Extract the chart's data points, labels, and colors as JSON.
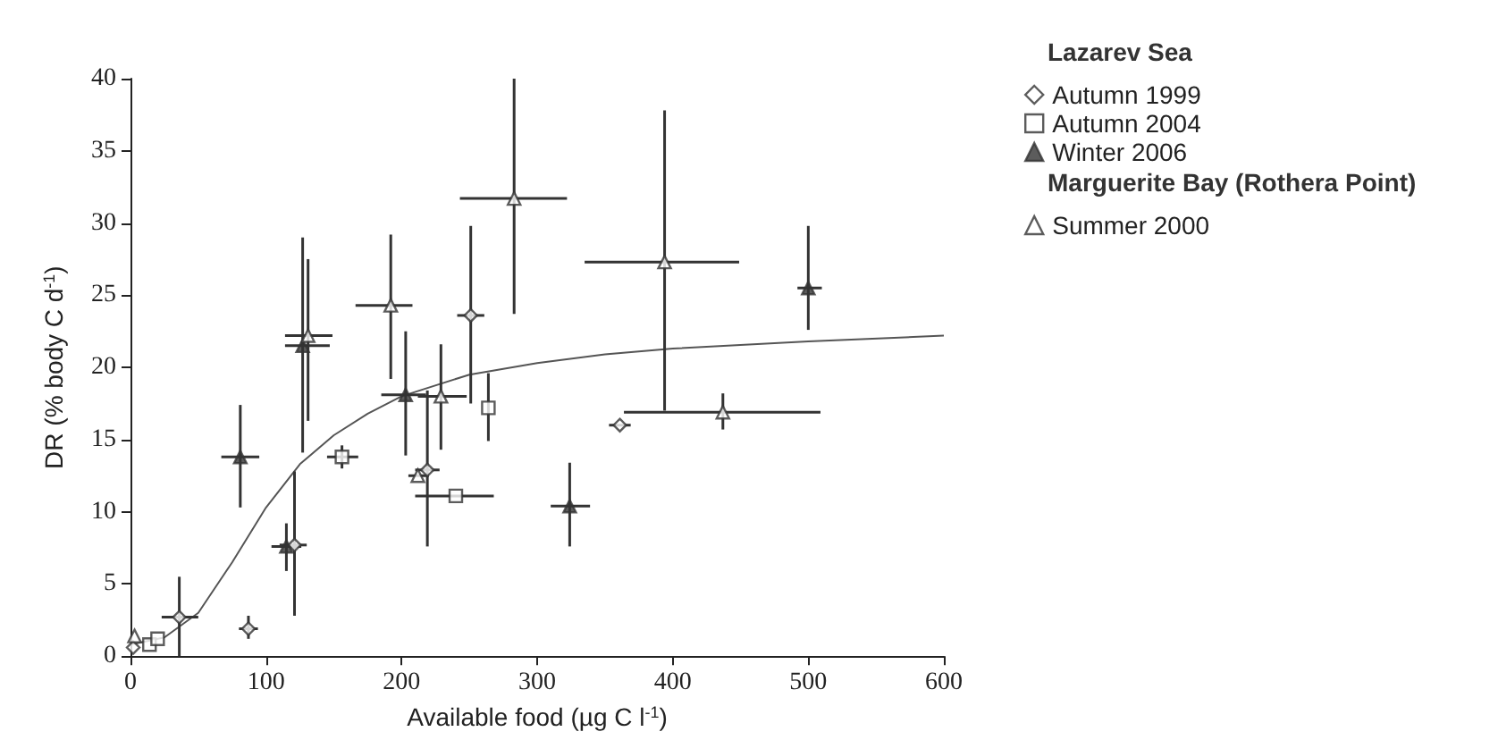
{
  "chart_data": {
    "type": "scatter",
    "xlabel": "Available food (µg C l$^{-1}$)",
    "ylabel": "DR (% body C d$^{-1}$)",
    "annotations": [
      "Lazarev Sea",
      "Marguerite Bay (Rothera Point)"
    ],
    "xlim": [
      0,
      600
    ],
    "xticks": [
      0,
      100,
      200,
      300,
      400,
      500,
      600
    ],
    "ylim": [
      0,
      40
    ],
    "yticks": [
      0,
      5,
      10,
      15,
      20,
      25,
      30,
      35,
      40
    ],
    "grid": false,
    "legend": "right",
    "series": [
      {
        "name": "Autumn 1999",
        "color": "#ffffff",
        "marker": "diamond",
        "x": [
          2,
          36,
          87,
          121,
          219,
          251,
          361
        ],
        "values": [
          0.6,
          2.7,
          1.9,
          7.7,
          12.9,
          23.6,
          16.0
        ],
        "errors": [
          null,
          [
            0,
            5.5
          ],
          [
            1.2,
            2.8
          ],
          [
            2.8,
            12.8
          ],
          [
            7.6,
            18.4
          ],
          [
            17.5,
            29.8
          ],
          null
        ],
        "xerrors": [
          null,
          [
            23,
            50
          ],
          [
            80,
            94
          ],
          [
            110,
            130
          ],
          [
            210,
            228
          ],
          [
            241,
            261
          ],
          [
            353,
            369
          ]
        ]
      },
      {
        "name": "Autumn 2004",
        "color": "#ffffff",
        "marker": "square",
        "x": [
          14,
          20,
          156,
          240,
          264
        ],
        "values": [
          0.8,
          1.2,
          13.8,
          11.1,
          17.2
        ],
        "errors": [
          null,
          null,
          [
            13,
            14.6
          ],
          null,
          [
            14.9,
            19.6
          ]
        ],
        "xerrors": [
          null,
          null,
          [
            145,
            168
          ],
          [
            210,
            268
          ],
          null
        ]
      },
      {
        "name": "Winter 2006",
        "color": "#333333",
        "marker": "triangle",
        "x": [
          81,
          115,
          127,
          203,
          324,
          500
        ],
        "values": [
          13.8,
          7.6,
          21.5,
          18.1,
          10.4,
          25.5
        ],
        "errors": [
          [
            10.3,
            17.4
          ],
          [
            5.9,
            9.2
          ],
          [
            14.1,
            29
          ],
          [
            13.9,
            22.5
          ],
          [
            7.6,
            13.4
          ],
          [
            22.6,
            29.8
          ]
        ],
        "xerrors": [
          [
            67,
            95
          ],
          [
            104,
            126
          ],
          [
            114,
            147
          ],
          [
            185,
            218
          ],
          [
            310,
            339
          ],
          [
            492,
            510
          ]
        ]
      },
      {
        "name": "Summer 2000",
        "color": "#ffffff",
        "marker": "triangle",
        "x": [
          3,
          131,
          192,
          212,
          229,
          283,
          394,
          437
        ],
        "values": [
          1.4,
          22.2,
          24.3,
          12.5,
          18.0,
          31.7,
          27.3,
          16.9
        ],
        "errors": [
          null,
          [
            16.3,
            27.5
          ],
          [
            19.2,
            29.2
          ],
          null,
          [
            14.3,
            21.6
          ],
          [
            23.7,
            40
          ],
          [
            17.0,
            37.8
          ],
          [
            15.7,
            18.2
          ]
        ],
        "xerrors": [
          null,
          [
            114,
            149
          ],
          [
            166,
            208
          ],
          [
            205,
            220
          ],
          [
            212,
            248
          ],
          [
            243,
            322
          ],
          [
            335,
            449
          ],
          [
            364,
            509
          ]
        ]
      },
      {
        "type": "line",
        "color": "#555555",
        "marker": "none",
        "x": [
          0,
          25,
          50,
          75,
          100,
          125,
          150,
          175,
          200,
          250,
          300,
          350,
          400,
          500,
          600
        ],
        "values": [
          0.8,
          1.3,
          3,
          6.5,
          10.3,
          13.3,
          15.3,
          16.8,
          18,
          19.5,
          20.3,
          20.9,
          21.3,
          21.8,
          22.2
        ]
      }
    ]
  }
}
